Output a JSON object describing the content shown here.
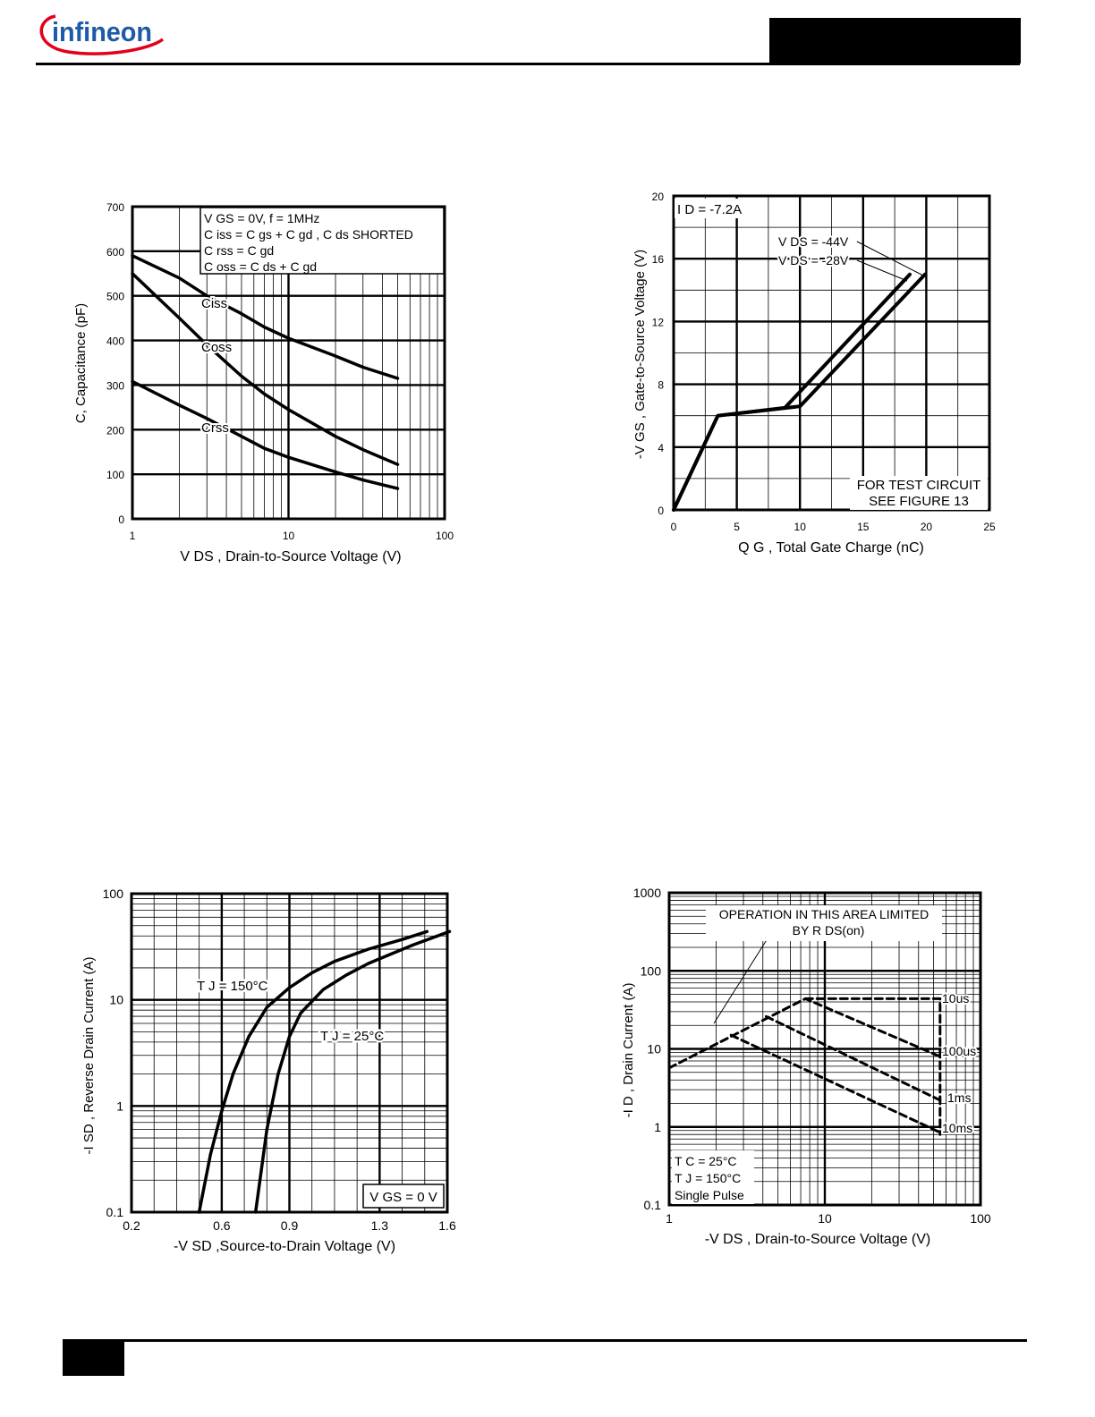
{
  "header": {
    "brand": "infineon"
  },
  "chart_data": [
    {
      "type": "line",
      "id": "capacitance",
      "xlabel": "V DS , Drain-to-Source Voltage (V)",
      "ylabel": "C, Capacitance (pF)",
      "xscale": "log",
      "xlim": [
        1,
        100
      ],
      "ylim": [
        0,
        700
      ],
      "x_ticks": [
        "1",
        "10",
        "100"
      ],
      "y_ticks": [
        "0",
        "100",
        "200",
        "300",
        "400",
        "500",
        "600",
        "700"
      ],
      "legend_lines": [
        "V GS = 0V,        f = 1MHz",
        "C iss = C gs + C gd ,  C ds  SHORTED",
        "C rss = C gd",
        "C oss = C ds + C gd"
      ],
      "series": [
        {
          "name": "Ciss",
          "x": [
            1,
            2,
            3,
            5,
            7,
            10,
            20,
            30,
            50
          ],
          "y": [
            590,
            540,
            500,
            460,
            430,
            405,
            365,
            340,
            315
          ]
        },
        {
          "name": "Coss",
          "x": [
            1,
            2,
            3,
            5,
            7,
            10,
            20,
            30,
            50
          ],
          "y": [
            550,
            450,
            390,
            320,
            280,
            245,
            185,
            155,
            122
          ]
        },
        {
          "name": "Crss",
          "x": [
            1,
            2,
            3,
            5,
            7,
            10,
            20,
            30,
            50
          ],
          "y": [
            308,
            255,
            225,
            185,
            158,
            138,
            105,
            87,
            68
          ]
        }
      ],
      "grid": true
    },
    {
      "type": "line",
      "id": "gate-charge",
      "xlabel": "Q G , Total Gate Charge (nC)",
      "ylabel": "-V GS , Gate-to-Source Voltage (V)",
      "xlim": [
        0,
        25
      ],
      "ylim": [
        0,
        20
      ],
      "x_ticks": [
        "0",
        "5",
        "10",
        "15",
        "20",
        "25"
      ],
      "y_ticks": [
        "0",
        "4",
        "8",
        "12",
        "16",
        "20"
      ],
      "annotations": [
        "I D = -7.2A",
        "V DS = -44V",
        "V DS = -28V",
        "FOR TEST CIRCUIT",
        "SEE FIGURE 13"
      ],
      "series": [
        {
          "name": "V DS = -28V",
          "x": [
            0,
            3.5,
            8.8,
            18.7
          ],
          "y": [
            0,
            6.0,
            6.5,
            15.0
          ]
        },
        {
          "name": "V DS = -44V",
          "x": [
            0,
            3.5,
            10.0,
            19.9
          ],
          "y": [
            0,
            6.0,
            6.6,
            15.0
          ]
        }
      ],
      "grid": true
    },
    {
      "type": "line",
      "id": "source-drain-diode",
      "xlabel": "-V SD ,Source-to-Drain Voltage (V)",
      "ylabel": "-I SD , Reverse Drain Current (A)",
      "yscale": "log",
      "xlim": [
        0.2,
        1.6
      ],
      "ylim": [
        0.1,
        100
      ],
      "x_ticks": [
        "0.2",
        "0.6",
        "0.9",
        "1.3",
        "1.6"
      ],
      "y_ticks": [
        "0.1",
        "1",
        "10",
        "100"
      ],
      "annotations": [
        "T J = 150°C",
        "T J = 25°C",
        "V GS = 0 V"
      ],
      "series": [
        {
          "name": "T J = 150°C",
          "x": [
            0.5,
            0.55,
            0.6,
            0.65,
            0.72,
            0.8,
            0.9,
            1.0,
            1.1,
            1.25,
            1.4,
            1.51
          ],
          "y": [
            0.1,
            0.35,
            0.9,
            2.0,
            4.5,
            8.5,
            13,
            18,
            23,
            30,
            37,
            44
          ]
        },
        {
          "name": "T J = 25°C",
          "x": [
            0.75,
            0.8,
            0.85,
            0.9,
            0.95,
            1.05,
            1.15,
            1.25,
            1.35,
            1.45,
            1.61
          ],
          "y": [
            0.1,
            0.6,
            2.0,
            4.5,
            7.5,
            12.5,
            17,
            22,
            27,
            33,
            44
          ]
        }
      ],
      "grid": true
    },
    {
      "type": "line",
      "id": "safe-operating-area",
      "xlabel": "-V DS , Drain-to-Source Voltage (V)",
      "ylabel": "-I D , Drain Current (A)",
      "xscale": "log",
      "yscale": "log",
      "xlim": [
        1,
        100
      ],
      "ylim": [
        0.1,
        1000
      ],
      "x_ticks": [
        "1",
        "10",
        "100"
      ],
      "y_ticks": [
        "0.1",
        "1",
        "10",
        "100",
        "1000"
      ],
      "annotations": [
        "OPERATION IN THIS AREA LIMITED",
        "BY R DS(on)",
        "T C = 25°C",
        "T J = 150°C",
        "Single Pulse"
      ],
      "series": [
        {
          "name": "10us",
          "x": [
            7.5,
            55,
            55
          ],
          "y": [
            44,
            44,
            0.8
          ]
        },
        {
          "name": "100us",
          "x": [
            1,
            7.5,
            55
          ],
          "y": [
            5.7,
            44,
            8.0
          ]
        },
        {
          "name": "1ms",
          "x": [
            4.2,
            55
          ],
          "y": [
            26,
            2.2
          ]
        },
        {
          "name": "10ms",
          "x": [
            2.5,
            55
          ],
          "y": [
            15,
            0.85
          ]
        }
      ],
      "grid": true
    }
  ]
}
